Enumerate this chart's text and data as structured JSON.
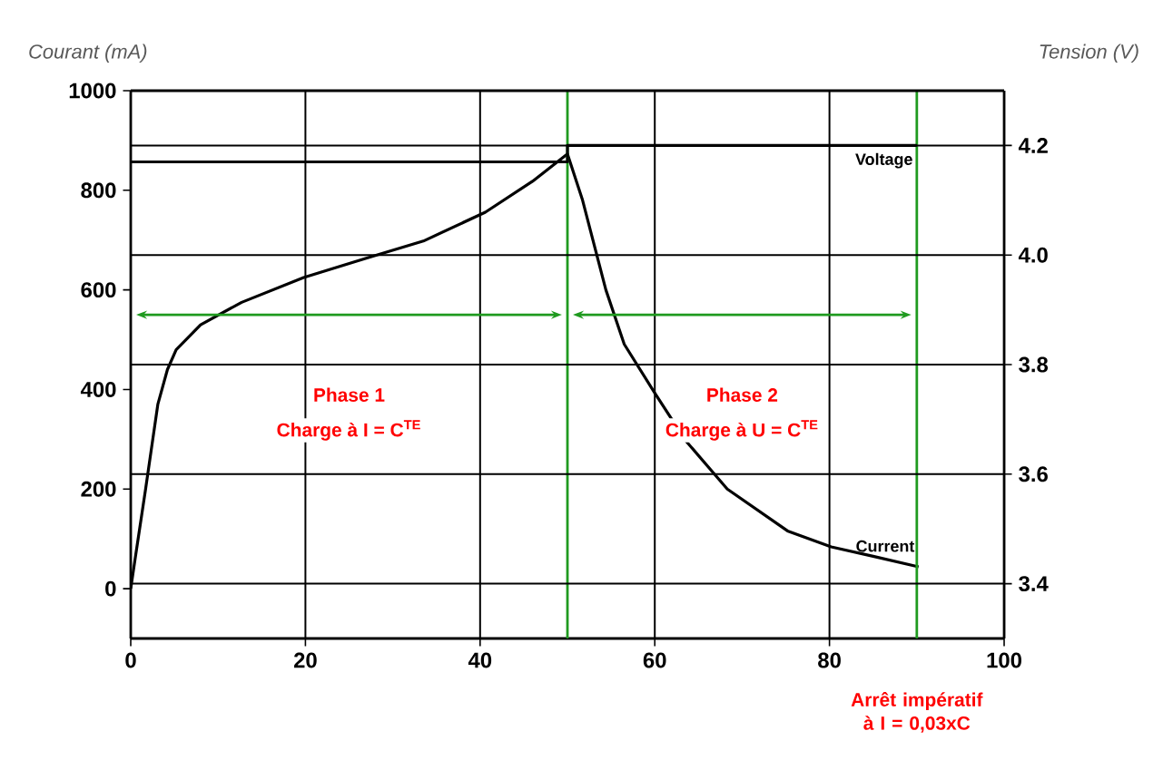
{
  "chart_data": {
    "type": "line",
    "xlim": [
      0,
      100
    ],
    "xticks": [
      0,
      20,
      40,
      60,
      80,
      100
    ],
    "ylim": [
      -100,
      1000
    ],
    "yticks": [
      0,
      200,
      400,
      600,
      800,
      1000
    ],
    "y2lim": [
      3.3,
      4.3
    ],
    "y2ticks": [
      3.4,
      3.6,
      3.8,
      {
        "value": 4.0,
        "label": "4.0"
      },
      4.2
    ],
    "ylabel": "Courant (mA)",
    "y2label": "Tension (V)",
    "grid": true,
    "line_style": "solid",
    "marker": "none",
    "series": [
      {
        "name": "Current",
        "color": "#000000",
        "x": [
          0,
          0.5,
          1.7,
          3.1,
          4.2,
          5.2,
          8,
          12.7,
          19.8,
          26.7,
          33.5,
          40.6,
          46,
          50,
          51.7,
          54.4,
          56.5,
          60,
          63.5,
          68.3,
          75.2,
          80.2,
          85,
          90.2
        ],
        "values": [
          0,
          60,
          200,
          370,
          440,
          480,
          530,
          575,
          625,
          662,
          698,
          756,
          818,
          873,
          782,
          600,
          491,
          393,
          298,
          200,
          116,
          84,
          65,
          44
        ]
      },
      {
        "name": "Voltage",
        "color": "#000000",
        "axis": "y2",
        "x": [
          0,
          50,
          50,
          90
        ],
        "values": [
          4.17,
          4.17,
          4.2,
          4.2
        ]
      }
    ],
    "ref_lines": [
      {
        "axis": "x",
        "value": 50,
        "color": "#1f9a1f"
      },
      {
        "axis": "x",
        "value": 90,
        "color": "#1f9a1f"
      }
    ],
    "annotations": [
      "Phase 1",
      "Charge à I = C$^{TE}$",
      "Phase 2",
      "Charge à U = C$^{TE}$",
      "Arrêt impératif à I = 0,03xC"
    ]
  }
}
